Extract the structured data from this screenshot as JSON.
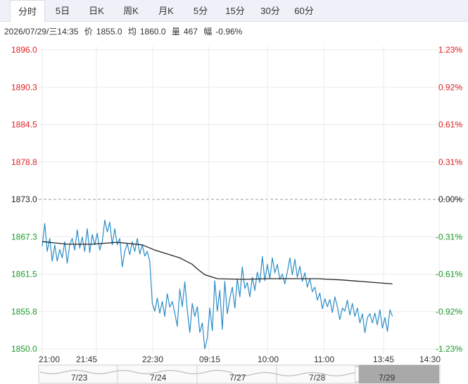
{
  "tabs": [
    {
      "label": "分时",
      "active": true
    },
    {
      "label": "5日",
      "active": false
    },
    {
      "label": "日K",
      "active": false
    },
    {
      "label": "周K",
      "active": false
    },
    {
      "label": "月K",
      "active": false
    },
    {
      "label": "5分",
      "active": false
    },
    {
      "label": "15分",
      "active": false
    },
    {
      "label": "30分",
      "active": false
    },
    {
      "label": "60分",
      "active": false
    }
  ],
  "info": {
    "datetime": "2026/07/29/三14:35",
    "price_label": "价",
    "price": "1855.0",
    "avg_label": "均",
    "avg": "1860.0",
    "vol_label": "量",
    "vol": "467",
    "chg_label": "幅",
    "chg": "-0.96%"
  },
  "colors": {
    "up": "#e02020",
    "down": "#1a9a2a",
    "price_line": "#2b8cc8",
    "avg_line": "#222222",
    "grid": "#ebebeb"
  },
  "chart_data": {
    "type": "line",
    "title": "",
    "ylim": [
      1850.0,
      1896.0
    ],
    "base": 1873.0,
    "y_ticks": [
      "1896.0",
      "1890.3",
      "1884.5",
      "1878.8",
      "1873.0",
      "1867.3",
      "1861.5",
      "1855.8",
      "1850.0"
    ],
    "y_ticks_right": [
      "1.23%",
      "0.92%",
      "0.61%",
      "0.31%",
      "0.00%",
      "-0.31%",
      "-0.61%",
      "-0.92%",
      "-1.23%"
    ],
    "x_ticks": [
      "21:00",
      "21:45",
      "22:30",
      "09:15",
      "10:00",
      "11:00",
      "13:45",
      "14:30"
    ],
    "x_range": [
      0,
      148
    ],
    "series": [
      {
        "key": "price",
        "x": [
          0,
          1,
          2,
          3,
          4,
          5,
          6,
          7,
          8,
          9,
          10,
          11,
          12,
          13,
          14,
          15,
          16,
          17,
          18,
          19,
          20,
          21,
          22,
          23,
          24,
          25,
          26,
          27,
          28,
          29,
          30,
          31,
          32,
          33,
          34,
          35,
          36,
          37,
          38,
          39,
          40,
          41,
          42,
          43,
          44,
          45,
          46,
          47,
          48,
          49,
          50,
          51,
          52,
          53,
          54,
          55,
          56,
          57,
          58,
          59,
          60,
          61,
          62,
          63,
          64,
          65,
          66,
          67,
          68,
          69,
          70,
          71,
          72,
          73,
          74,
          75,
          76,
          77,
          78,
          79,
          80,
          81,
          82,
          83,
          84,
          85,
          86,
          87,
          88,
          89,
          90,
          91,
          92,
          93,
          94,
          95,
          96,
          97,
          98,
          99,
          100,
          101,
          102,
          103,
          104,
          105,
          106,
          107,
          108,
          109,
          110,
          111,
          112,
          113,
          114,
          115,
          116,
          117,
          118,
          119,
          120,
          121,
          122,
          123,
          124,
          125,
          126,
          127,
          128,
          129,
          130,
          131,
          132,
          133,
          134,
          135,
          136,
          137,
          138,
          139,
          140
        ],
        "values": [
          1865.8,
          1869.3,
          1865.0,
          1867.0,
          1863.5,
          1866.0,
          1863.5,
          1865.3,
          1864.0,
          1866.5,
          1863.2,
          1866.0,
          1867.0,
          1865.2,
          1868.3,
          1865.5,
          1867.2,
          1865.0,
          1868.5,
          1864.8,
          1867.6,
          1866.0,
          1867.8,
          1865.2,
          1866.5,
          1869.8,
          1868.0,
          1869.5,
          1866.0,
          1868.5,
          1866.0,
          1867.0,
          1862.6,
          1865.0,
          1866.2,
          1864.5,
          1866.5,
          1865.0,
          1867.0,
          1864.6,
          1866.0,
          1864.3,
          1865.0,
          1863.5,
          1857.0,
          1855.8,
          1857.8,
          1855.5,
          1857.3,
          1855.0,
          1858.5,
          1856.4,
          1857.3,
          1855.5,
          1853.5,
          1859.2,
          1856.5,
          1860.3,
          1856.0,
          1852.5,
          1857.0,
          1855.0,
          1856.5,
          1852.5,
          1854.0,
          1850.0,
          1851.7,
          1856.3,
          1852.8,
          1860.5,
          1855.8,
          1859.0,
          1853.0,
          1860.4,
          1855.4,
          1857.8,
          1859.5,
          1856.3,
          1860.8,
          1858.0,
          1862.6,
          1859.3,
          1860.2,
          1858.0,
          1861.0,
          1859.0,
          1861.8,
          1860.2,
          1864.2,
          1860.5,
          1863.0,
          1860.8,
          1864.0,
          1861.7,
          1863.0,
          1860.7,
          1861.5,
          1860.0,
          1861.8,
          1864.0,
          1861.4,
          1863.8,
          1861.0,
          1862.7,
          1860.4,
          1861.7,
          1859.5,
          1860.8,
          1858.8,
          1859.5,
          1857.5,
          1858.6,
          1856.2,
          1857.7,
          1856.5,
          1857.6,
          1855.6,
          1858.0,
          1856.5,
          1854.5,
          1856.3,
          1855.8,
          1857.5,
          1855.2,
          1857.0,
          1855.0,
          1856.3,
          1854.0,
          1855.4,
          1852.5,
          1854.8,
          1855.4,
          1854.0,
          1855.5,
          1853.7,
          1856.0,
          1853.2,
          1854.8,
          1852.7,
          1856.0,
          1855.0
        ]
      },
      {
        "key": "avg",
        "x": [
          0,
          5,
          10,
          20,
          30,
          35,
          40,
          45,
          50,
          55,
          60,
          62,
          65,
          70,
          80,
          90,
          100,
          110,
          120,
          130,
          140
        ],
        "values": [
          1866.5,
          1866.3,
          1866.1,
          1866.1,
          1866.4,
          1866.2,
          1866.0,
          1865.2,
          1864.6,
          1864.0,
          1863.0,
          1862.3,
          1861.4,
          1860.8,
          1860.7,
          1860.8,
          1860.8,
          1860.8,
          1860.6,
          1860.3,
          1860.0
        ]
      }
    ],
    "mini_nav": {
      "labels": [
        "7/23",
        "7/24",
        "7/27",
        "7/28",
        "7/29"
      ]
    }
  }
}
